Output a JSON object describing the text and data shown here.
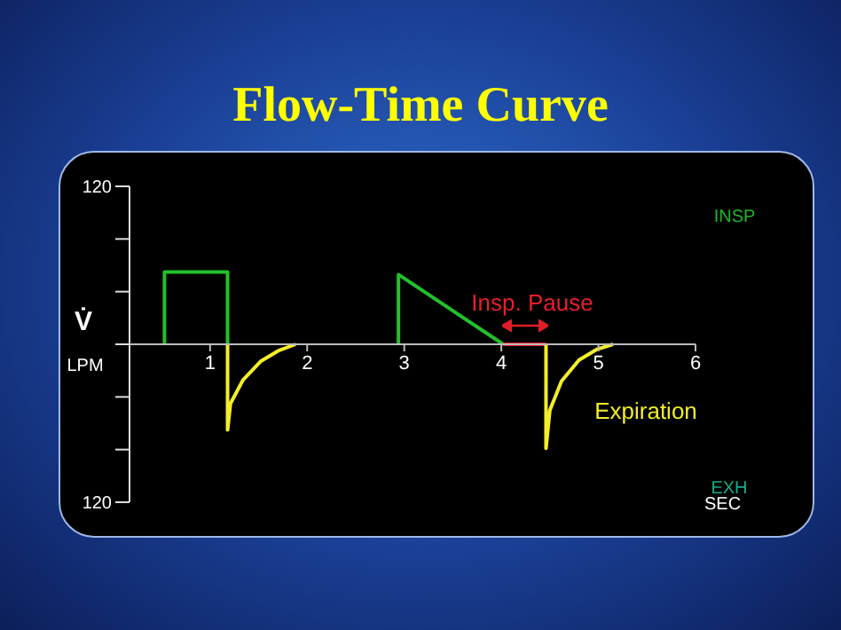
{
  "chart_data": {
    "type": "line",
    "title": "Flow-Time Curve",
    "xlabel": "SEC",
    "ylabel": "V̇",
    "xlim": [
      0.17,
      6
    ],
    "xticks": [
      1,
      2,
      3,
      4,
      5,
      6
    ],
    "ylim": [
      -120,
      120
    ],
    "yticks": [
      {
        "value": 120,
        "label": "120"
      },
      {
        "value": 80,
        "label": null
      },
      {
        "value": 40,
        "label": null
      },
      {
        "value": 0,
        "label": null
      },
      {
        "value": -40,
        "label": null
      },
      {
        "value": -80,
        "label": null
      },
      {
        "value": -120,
        "label": "120"
      }
    ],
    "marker": "none",
    "line_style": "solid",
    "series": [
      {
        "color": "#22c02a",
        "x": [
          0.53,
          0.53,
          1.18,
          1.18
        ],
        "values": [
          0,
          55,
          55,
          0
        ]
      },
      {
        "color": "#f2ee2a",
        "x": [
          1.18,
          1.18,
          1.21,
          1.34,
          1.52,
          1.7,
          1.88
        ],
        "values": [
          0,
          -65,
          -45,
          -27,
          -13,
          -5,
          0
        ]
      },
      {
        "color": "#22c02a",
        "x": [
          2.94,
          2.94,
          4.02
        ],
        "values": [
          0,
          53,
          0
        ]
      },
      {
        "color": "#e01e28",
        "x": [
          4.02,
          4.46
        ],
        "values": [
          0,
          0
        ]
      },
      {
        "color": "#f2ee2a",
        "x": [
          4.46,
          4.46,
          4.5,
          4.62,
          4.8,
          4.98,
          5.15
        ],
        "values": [
          0,
          -79,
          -50,
          -28,
          -12,
          -4,
          0
        ]
      }
    ],
    "annotations": [
      "Insp. Pause",
      "Expiration",
      "INSP",
      "EXH",
      "LPM"
    ]
  }
}
